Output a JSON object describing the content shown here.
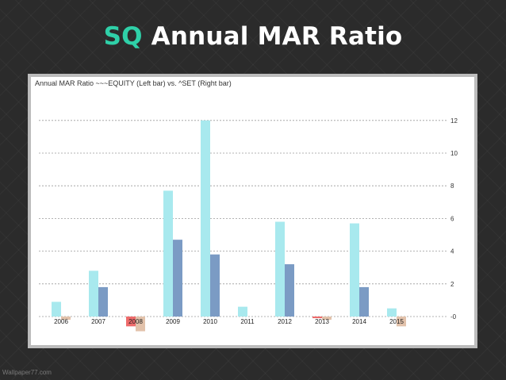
{
  "slide": {
    "title_accent": "SQ",
    "title_rest": "Annual MAR Ratio"
  },
  "watermark": "Wallpaper77.com",
  "colors": {
    "equity_positive": "#a8e9ee",
    "equity_negative": "#ee6b6b",
    "set_positive": "#7b9bc4",
    "set_negative": "#e2c2ab",
    "accent": "#2fd0a8"
  },
  "chart_data": {
    "type": "bar",
    "title": "Annual MAR Ratio ~~~EQUITY (Left bar)  vs.  ^SET (Right bar)",
    "categories": [
      "2006",
      "2007",
      "2008",
      "2009",
      "2010",
      "2011",
      "2012",
      "2013",
      "2014",
      "2015"
    ],
    "series": [
      {
        "name": "~~~EQUITY",
        "values": [
          0.9,
          2.8,
          -0.6,
          7.7,
          12.0,
          0.6,
          5.8,
          -0.1,
          5.7,
          0.5
        ]
      },
      {
        "name": "^SET",
        "values": [
          -0.2,
          1.8,
          -0.9,
          4.7,
          3.8,
          0,
          3.2,
          -0.2,
          1.8,
          -0.6
        ]
      }
    ],
    "y_ticks": [
      "0",
      "2",
      "4",
      "6",
      "8",
      "10",
      "12"
    ],
    "ylim": [
      -1,
      12.8
    ],
    "yaxis_position": "right",
    "grid": true
  }
}
